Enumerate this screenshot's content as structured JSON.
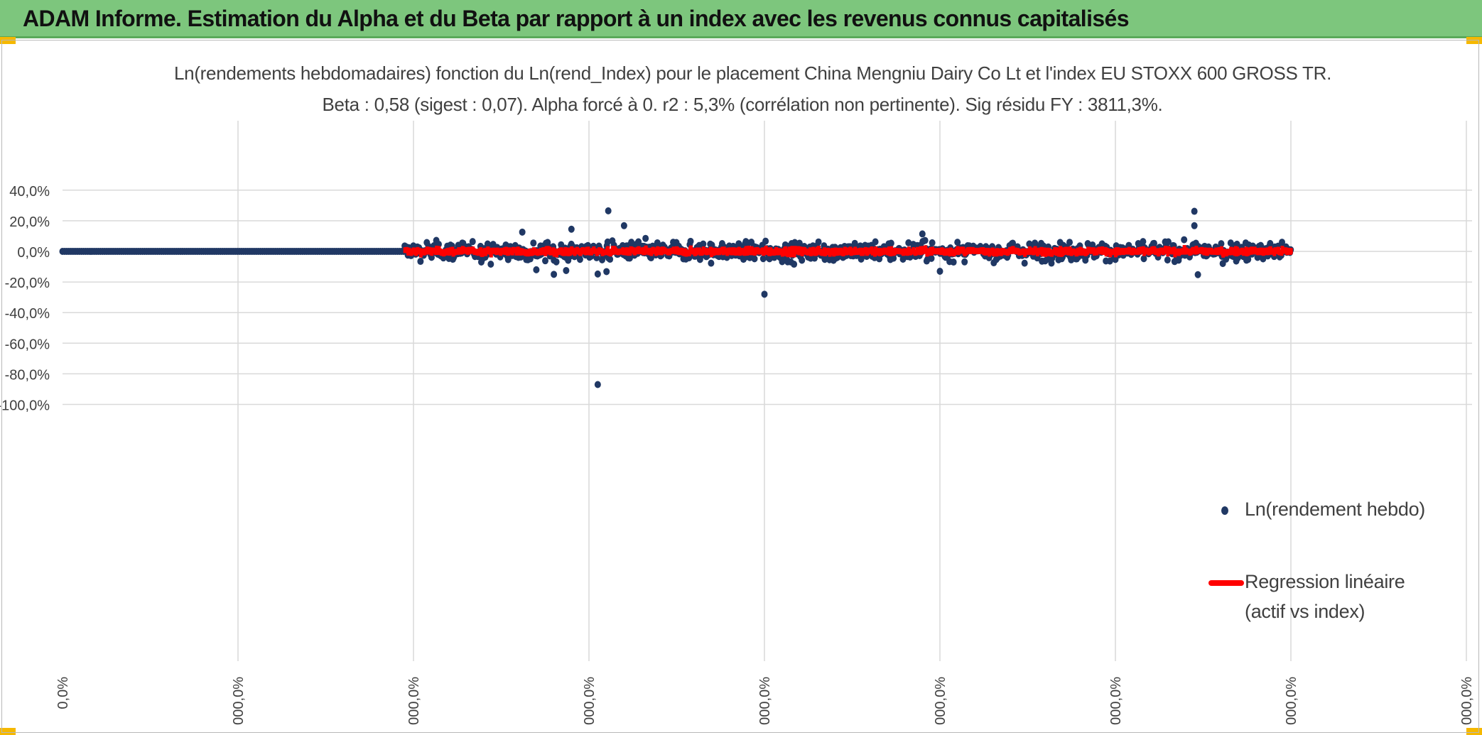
{
  "banner": {
    "title": "ADAM Informe. Estimation du Alpha et du Beta par rapport à un index avec les revenus connus capitalisés",
    "color": "#7dc67d"
  },
  "chart_data": {
    "type": "scatter",
    "title": "Ln(rendements hebdomadaires) fonction du Ln(rend_Index) pour le placement China Mengniu Dairy Co Lt et l'index EU STOXX 600 GROSS TR.",
    "subtitle": "Beta : 0,58 (sigest : 0,07). Alpha forcé à 0. r2 : 5,3% (corrélation non pertinente). Sig résidu FY : 3811,3%.",
    "y_ticks": [
      "40,0%",
      "20,0%",
      "0,0%",
      "-20,0%",
      "-40,0%",
      "-60,0%",
      "-80,0%",
      "-100,0%"
    ],
    "ylim": [
      -100,
      40
    ],
    "x_ticks": [
      "0,0%",
      "000,0%",
      "000,0%",
      "000,0%",
      "000,0%",
      "000,0%",
      "000,0%",
      "000,0%",
      "000,0%"
    ],
    "grid": true,
    "legend_position": "right",
    "series": [
      {
        "name": "Ln(rendement hebdo)",
        "color": "#203864",
        "flat_segment": {
          "x_from": 0,
          "x_to": 1.95,
          "y": 0
        },
        "outliers": [
          {
            "x": 3.11,
            "y": 26.5
          },
          {
            "x": 3.05,
            "y": -14.8
          },
          {
            "x": 3.1,
            "y": -13.2
          },
          {
            "x": 2.9,
            "y": 14.5
          },
          {
            "x": 2.87,
            "y": -12.5
          },
          {
            "x": 2.8,
            "y": -15
          },
          {
            "x": 3.2,
            "y": 16.8
          },
          {
            "x": 4.0,
            "y": -28
          },
          {
            "x": 3.05,
            "y": -87
          },
          {
            "x": 6.45,
            "y": 26.2
          },
          {
            "x": 6.45,
            "y": 16.8
          },
          {
            "x": 6.47,
            "y": -15.2
          },
          {
            "x": 5.0,
            "y": -13
          },
          {
            "x": 4.9,
            "y": 11.4
          },
          {
            "x": 2.7,
            "y": -12
          },
          {
            "x": 2.62,
            "y": 12.6
          }
        ],
        "dense_range": {
          "x_from": 1.95,
          "x_to": 7.0
        }
      },
      {
        "name": "Regression linéaire",
        "name_line2": "(actif vs index)",
        "color": "#ff0000",
        "beta": 0.58
      }
    ]
  }
}
